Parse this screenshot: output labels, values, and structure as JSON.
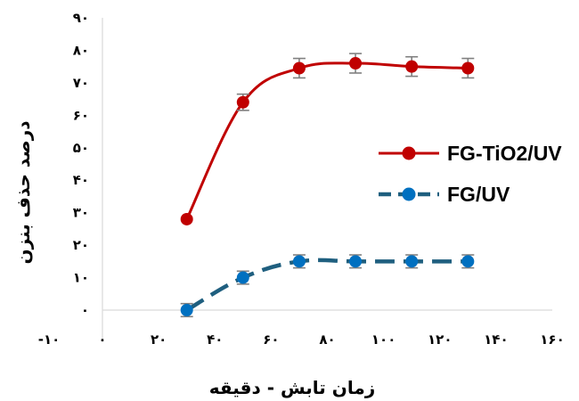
{
  "chart_data": {
    "type": "line",
    "xlabel": "زمان تابش - دقیقه",
    "ylabel": "درصد حذف بنزن",
    "xlim": [
      -10,
      160
    ],
    "ylim": [
      -10,
      90
    ],
    "x_ticks": [
      -10,
      0,
      20,
      40,
      60,
      80,
      100,
      120,
      140,
      160
    ],
    "x_tick_labels": [
      "-۱۰",
      "۰",
      "۲۰",
      "۴۰",
      "۶۰",
      "۸۰",
      "۱۰۰",
      "۱۲۰",
      "۱۴۰",
      "۱۶۰"
    ],
    "y_ticks": [
      0,
      10,
      20,
      30,
      40,
      50,
      60,
      70,
      80,
      90
    ],
    "y_tick_labels": [
      "۰",
      "۱۰",
      "۲۰",
      "۳۰",
      "۴۰",
      "۵۰",
      "۶۰",
      "۷۰",
      "۸۰",
      "۹۰"
    ],
    "grid": false,
    "legend_position": "right",
    "series": [
      {
        "name": "FG-TiO2/UV",
        "color": "#c00000",
        "line_style": "solid",
        "x": [
          30,
          50,
          70,
          90,
          110,
          130
        ],
        "y": [
          28,
          64,
          74.5,
          76,
          75,
          74.5
        ],
        "error": [
          0,
          2.5,
          3,
          3,
          3,
          3
        ]
      },
      {
        "name": "FG/UV",
        "color": "#1f5f7f",
        "marker_color": "#0070c0",
        "line_style": "dashed",
        "x": [
          30,
          50,
          70,
          90,
          110,
          130
        ],
        "y": [
          0,
          10,
          15,
          15,
          15,
          15
        ],
        "error": [
          2,
          2,
          2,
          2,
          2,
          2
        ]
      }
    ]
  }
}
